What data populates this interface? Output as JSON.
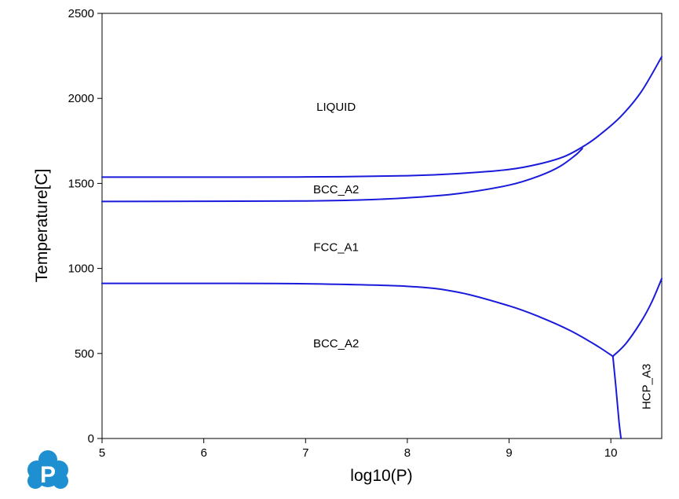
{
  "chart_data": {
    "type": "line",
    "title": "",
    "xlabel": "log10(P)",
    "ylabel": "Temperature[C]",
    "xlim": [
      5,
      10.5
    ],
    "ylim": [
      0,
      2500
    ],
    "x_ticks": [
      5,
      6,
      7,
      8,
      9,
      10
    ],
    "y_ticks": [
      0,
      500,
      1000,
      1500,
      2000,
      2500
    ],
    "grid": false,
    "line_color": "#1a1adb",
    "series": [
      {
        "points": [
          [
            5.0,
            1537
          ],
          [
            6.0,
            1537
          ],
          [
            7.0,
            1538
          ],
          [
            8.0,
            1545
          ],
          [
            8.5,
            1558
          ],
          [
            9.0,
            1582
          ],
          [
            9.3,
            1615
          ],
          [
            9.55,
            1660
          ],
          [
            9.75,
            1725
          ],
          [
            9.9,
            1790
          ],
          [
            10.1,
            1895
          ],
          [
            10.3,
            2040
          ],
          [
            10.5,
            2245
          ]
        ]
      },
      {
        "points": [
          [
            5.0,
            1394
          ],
          [
            6.0,
            1395
          ],
          [
            7.0,
            1397
          ],
          [
            7.5,
            1402
          ],
          [
            8.0,
            1415
          ],
          [
            8.5,
            1440
          ],
          [
            9.0,
            1490
          ],
          [
            9.3,
            1545
          ],
          [
            9.5,
            1600
          ],
          [
            9.65,
            1665
          ],
          [
            9.72,
            1705
          ]
        ]
      },
      {
        "points": [
          [
            5.0,
            912
          ],
          [
            6.0,
            912
          ],
          [
            7.0,
            910
          ],
          [
            8.0,
            895
          ],
          [
            8.5,
            860
          ],
          [
            9.0,
            780
          ],
          [
            9.3,
            715
          ],
          [
            9.6,
            635
          ],
          [
            9.85,
            550
          ],
          [
            10.02,
            483
          ]
        ]
      },
      {
        "points": [
          [
            10.02,
            483
          ],
          [
            10.15,
            560
          ],
          [
            10.3,
            690
          ],
          [
            10.4,
            800
          ],
          [
            10.5,
            940
          ]
        ]
      },
      {
        "points": [
          [
            10.02,
            483
          ],
          [
            10.05,
            300
          ],
          [
            10.08,
            100
          ],
          [
            10.1,
            0
          ]
        ]
      }
    ],
    "annotations": [
      {
        "text": "LIQUID",
        "x": 7.3,
        "y": 1950,
        "rotation": 0
      },
      {
        "text": "BCC_A2",
        "x": 7.3,
        "y": 1465,
        "rotation": 0
      },
      {
        "text": "FCC_A1",
        "x": 7.3,
        "y": 1125,
        "rotation": 0
      },
      {
        "text": "BCC_A2",
        "x": 7.3,
        "y": 560,
        "rotation": 0
      },
      {
        "text": "HCP_A3",
        "x": 10.35,
        "y": 305,
        "rotation": -90
      }
    ]
  },
  "logo": {
    "letter": "P",
    "color": "#1e8fd1"
  }
}
